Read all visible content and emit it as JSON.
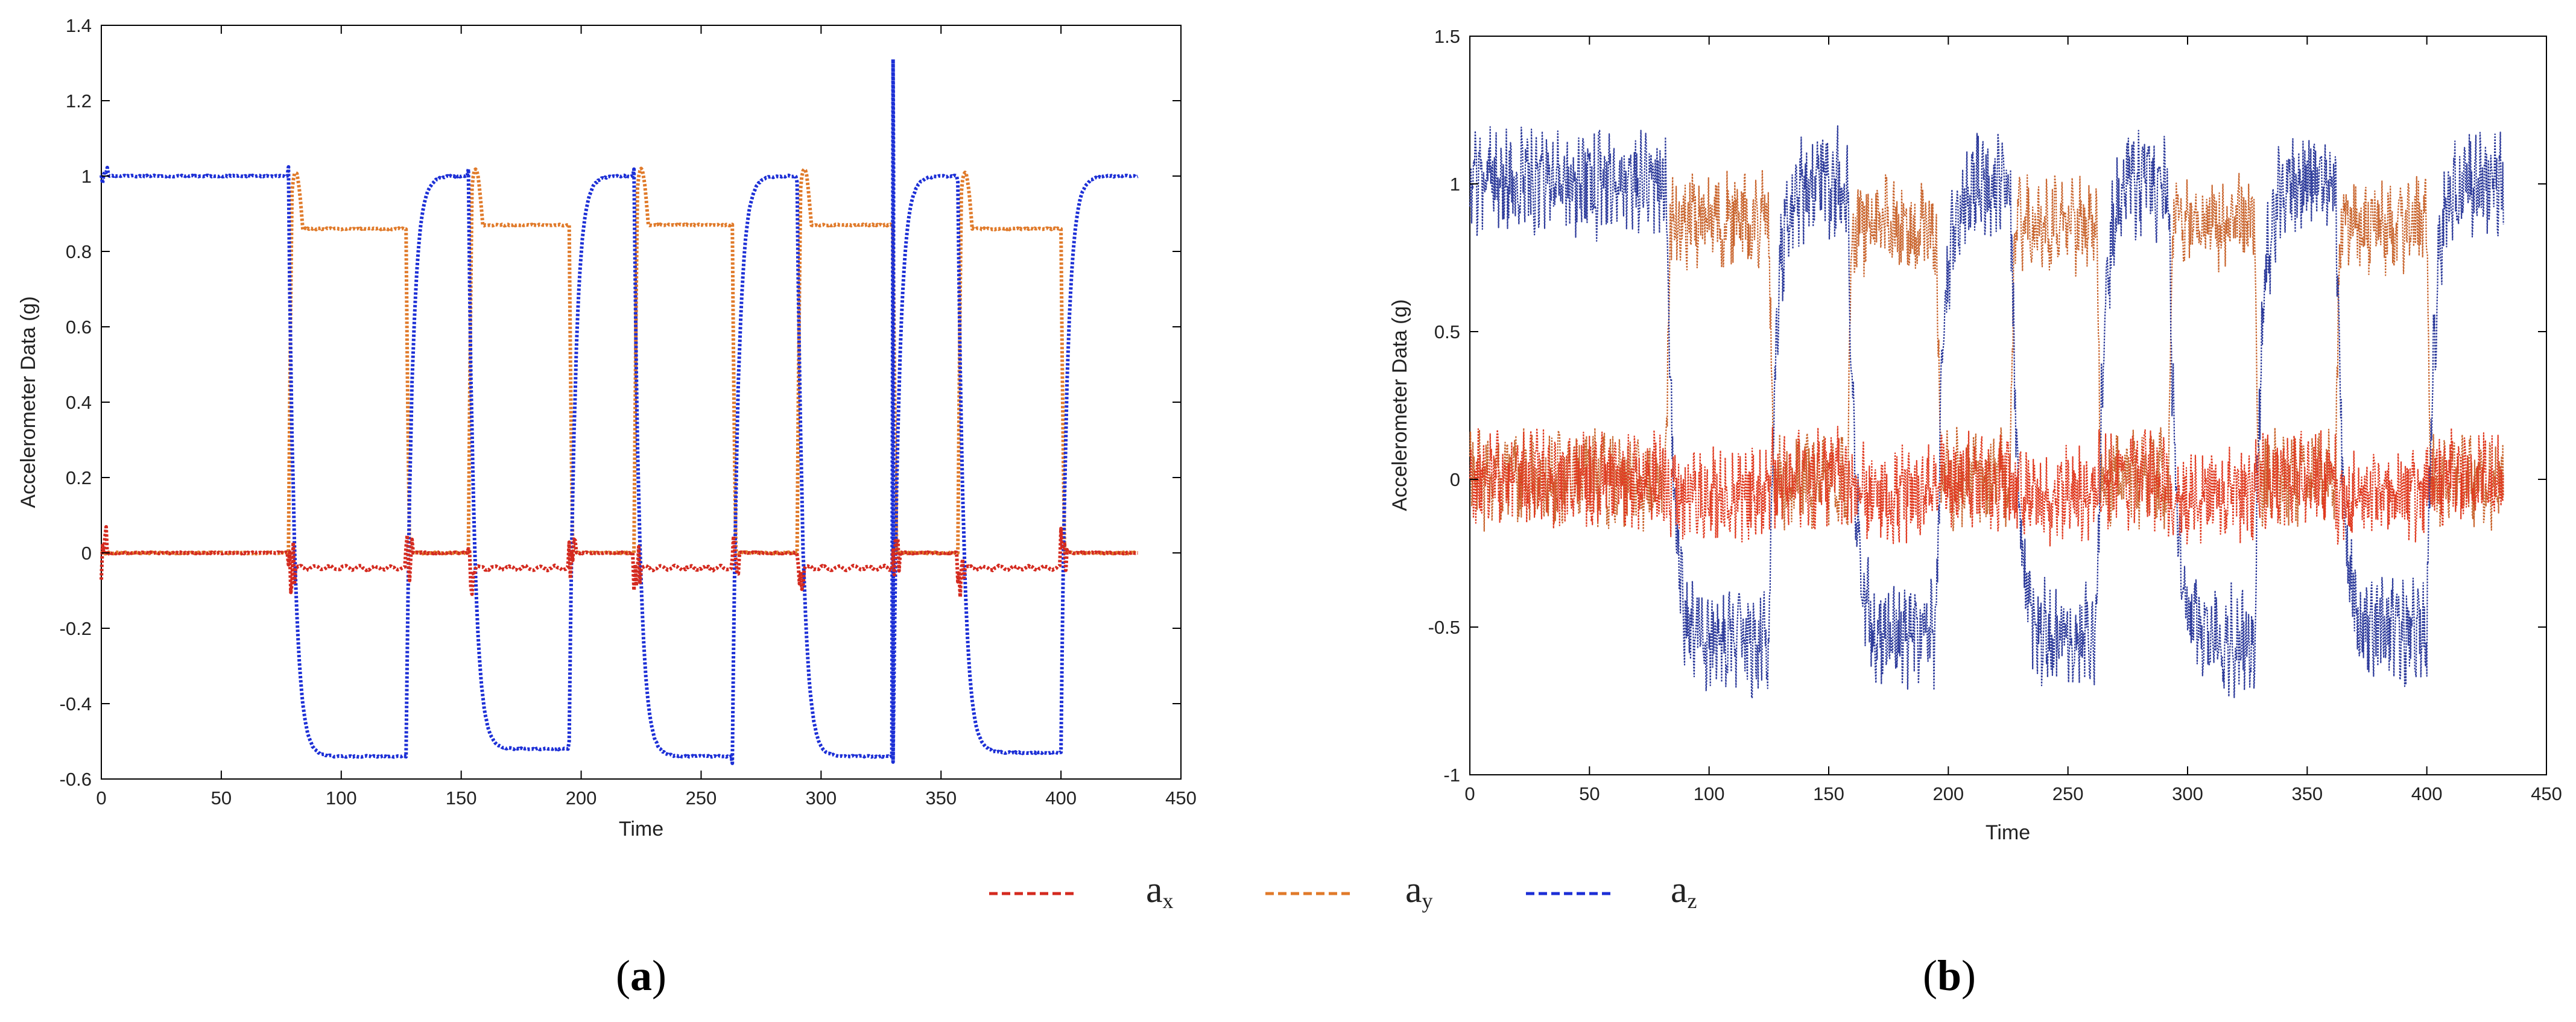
{
  "chart_data": [
    {
      "id": "a",
      "type": "line",
      "panel_label": "a",
      "xlabel": "Time",
      "ylabel": "Accelerometer Data (g)",
      "xlim": [
        0,
        450
      ],
      "ylim": [
        -0.6,
        1.4
      ],
      "xticks": [
        0,
        50,
        100,
        150,
        200,
        250,
        300,
        350,
        400,
        450
      ],
      "yticks": [
        -0.6,
        -0.4,
        -0.2,
        0,
        0.2,
        0.4,
        0.6,
        0.8,
        1,
        1.2,
        1.4
      ],
      "ytick_labels": [
        "-0.6",
        "-0.4",
        "-0.2",
        "0",
        "0.2",
        "0.4",
        "0.6",
        "0.8",
        "1",
        "1.2",
        "1.4"
      ],
      "noise": "low",
      "segments": [
        {
          "start": 0,
          "end": 78,
          "state": "flat"
        },
        {
          "start": 78,
          "end": 127,
          "state": "tilt",
          "ay": 0.86,
          "az": -0.54
        },
        {
          "start": 127,
          "end": 153,
          "state": "flat"
        },
        {
          "start": 153,
          "end": 195,
          "state": "tilt",
          "ay": 0.87,
          "az": -0.52
        },
        {
          "start": 195,
          "end": 222,
          "state": "flat"
        },
        {
          "start": 222,
          "end": 263,
          "state": "tilt",
          "ay": 0.87,
          "az": -0.54
        },
        {
          "start": 263,
          "end": 290,
          "state": "flat"
        },
        {
          "start": 290,
          "end": 330,
          "state": "tilt",
          "ay": 0.87,
          "az": -0.54
        },
        {
          "start": 330,
          "end": 357,
          "state": "flat"
        },
        {
          "start": 357,
          "end": 400,
          "state": "tilt",
          "ay": 0.86,
          "az": -0.53
        },
        {
          "start": 400,
          "end": 432,
          "state": "flat"
        }
      ],
      "spikes": [
        {
          "series": "az",
          "x": 330,
          "y": 1.31
        }
      ]
    },
    {
      "id": "b",
      "type": "line",
      "panel_label": "b",
      "xlabel": "Time",
      "ylabel": "Accelerometer Data (g)",
      "xlim": [
        0,
        450
      ],
      "ylim": [
        -1,
        1.5
      ],
      "xticks": [
        0,
        50,
        100,
        150,
        200,
        250,
        300,
        350,
        400,
        450
      ],
      "yticks": [
        -1,
        -0.5,
        0,
        0.5,
        1,
        1.5
      ],
      "ytick_labels": [
        "-1",
        "-0.5",
        "0",
        "0.5",
        "1",
        "1.5"
      ],
      "noise": "high",
      "segments": [
        {
          "start": 0,
          "end": 82,
          "state": "flat"
        },
        {
          "start": 82,
          "end": 125,
          "state": "tilt",
          "ay": 0.88,
          "az": -0.55
        },
        {
          "start": 125,
          "end": 158,
          "state": "flat"
        },
        {
          "start": 158,
          "end": 195,
          "state": "tilt",
          "ay": 0.86,
          "az": -0.53
        },
        {
          "start": 195,
          "end": 226,
          "state": "flat"
        },
        {
          "start": 226,
          "end": 262,
          "state": "tilt",
          "ay": 0.86,
          "az": -0.54
        },
        {
          "start": 262,
          "end": 292,
          "state": "flat"
        },
        {
          "start": 292,
          "end": 328,
          "state": "tilt",
          "ay": 0.87,
          "az": -0.54
        },
        {
          "start": 328,
          "end": 362,
          "state": "flat"
        },
        {
          "start": 362,
          "end": 400,
          "state": "tilt",
          "ay": 0.86,
          "az": -0.52
        },
        {
          "start": 400,
          "end": 432,
          "state": "flat"
        }
      ]
    }
  ],
  "legend": [
    {
      "key": "ax",
      "base": "a",
      "sub": "x",
      "color": "#d42a1f"
    },
    {
      "key": "ay",
      "base": "a",
      "sub": "y",
      "color": "#e07a2a"
    },
    {
      "key": "az",
      "base": "a",
      "sub": "z",
      "color": "#1c2fd6"
    }
  ],
  "colors_b": {
    "ax": "#e03a20",
    "ay": "#c9652e",
    "az": "#2c3a9a"
  }
}
